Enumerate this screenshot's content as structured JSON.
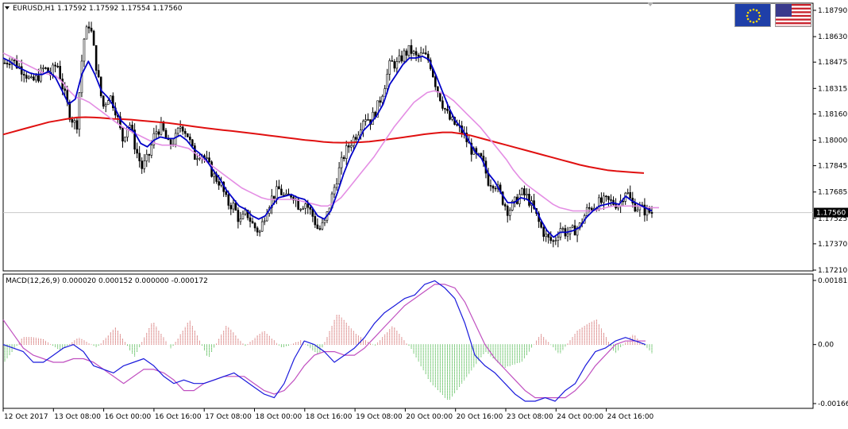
{
  "symbol_header": "EURUSD,H1  1.17592 1.17592 1.17554 1.17560",
  "current_price_label": "1.17560",
  "macd_header": "MACD(12,26,9) 0.000020 0.000152 0.000000 -0.000172",
  "flags": [
    {
      "name": "eu",
      "label": "EUR"
    },
    {
      "name": "us",
      "label": "USD"
    }
  ],
  "colors": {
    "background": "#ffffff",
    "grid": "#c8c8c8",
    "candle": "#000000",
    "ma_fast": "#0000c8",
    "ma_mid": "#e48ee4",
    "ma_slow": "#e01010",
    "macd_line": "#1a1adc",
    "signal_line": "#c050c0",
    "hist_up": "#c03030",
    "hist_down": "#10a010",
    "price_tag_bg": "#000000",
    "price_tag_text": "#ffffff",
    "eu_flag": "#1f3fa8",
    "eu_stars": "#ffd800",
    "us_red": "#c8202a",
    "us_blue": "#3a3a8c"
  },
  "chart_data": [
    {
      "type": "candlestick",
      "title": "EURUSD,H1",
      "y_ticks": [
        "1.18790",
        "1.18630",
        "1.18475",
        "1.18315",
        "1.18160",
        "1.18000",
        "1.17845",
        "1.17685",
        "1.17525",
        "1.17370",
        "1.17210"
      ],
      "x_ticks": [
        "12 Oct 2017",
        "13 Oct 08:00",
        "16 Oct 00:00",
        "16 Oct 16:00",
        "17 Oct 08:00",
        "18 Oct 00:00",
        "18 Oct 16:00",
        "19 Oct 08:00",
        "20 Oct 00:00",
        "20 Oct 16:00",
        "23 Oct 08:00",
        "24 Oct 00:00",
        "24 Oct 16:00"
      ],
      "ylim": [
        1.1721,
        1.1879
      ],
      "current_price": 1.1756,
      "series": {
        "close_path": [
          1.1847,
          1.185,
          1.1845,
          1.1842,
          1.1835,
          1.1838,
          1.1844,
          1.184,
          1.1847,
          1.183,
          1.1815,
          1.1808,
          1.186,
          1.1872,
          1.1845,
          1.182,
          1.1828,
          1.1818,
          1.18,
          1.1812,
          1.1795,
          1.1783,
          1.179,
          1.1805,
          1.1808,
          1.1797,
          1.18,
          1.181,
          1.1803,
          1.179,
          1.1793,
          1.1786,
          1.1778,
          1.1774,
          1.1762,
          1.176,
          1.175,
          1.1756,
          1.1748,
          1.1744,
          1.1758,
          1.1766,
          1.177,
          1.1764,
          1.1768,
          1.176,
          1.1762,
          1.1755,
          1.1745,
          1.175,
          1.1765,
          1.178,
          1.1792,
          1.1799,
          1.1805,
          1.1815,
          1.1812,
          1.182,
          1.1832,
          1.1847,
          1.1846,
          1.1852,
          1.1855,
          1.185,
          1.1852,
          1.1848,
          1.1833,
          1.1822,
          1.1813,
          1.1809,
          1.1805,
          1.1797,
          1.179,
          1.1788,
          1.1775,
          1.1774,
          1.1765,
          1.1757,
          1.1762,
          1.1768,
          1.1765,
          1.1757,
          1.1747,
          1.174,
          1.1738,
          1.1747,
          1.1743,
          1.1745,
          1.1748,
          1.1757,
          1.176,
          1.1762,
          1.1763,
          1.1762,
          1.1761,
          1.177,
          1.1761,
          1.1759,
          1.1757,
          1.1756
        ],
        "ma_fast_path": [
          1.185,
          1.1848,
          1.1845,
          1.1843,
          1.1841,
          1.184,
          1.184,
          1.1842,
          1.1838,
          1.183,
          1.1822,
          1.1825,
          1.184,
          1.1848,
          1.184,
          1.183,
          1.1826,
          1.182,
          1.1812,
          1.1808,
          1.1805,
          1.1798,
          1.1796,
          1.18,
          1.1802,
          1.1801,
          1.1801,
          1.1803,
          1.18,
          1.1795,
          1.1792,
          1.1788,
          1.1782,
          1.1777,
          1.177,
          1.1765,
          1.176,
          1.1758,
          1.1754,
          1.1752,
          1.1754,
          1.176,
          1.1765,
          1.1766,
          1.1767,
          1.1765,
          1.1764,
          1.176,
          1.1754,
          1.1752,
          1.1757,
          1.1768,
          1.178,
          1.179,
          1.1798,
          1.1806,
          1.181,
          1.1815,
          1.1822,
          1.1834,
          1.184,
          1.1846,
          1.185,
          1.185,
          1.1851,
          1.1849,
          1.184,
          1.183,
          1.182,
          1.1812,
          1.1807,
          1.18,
          1.1793,
          1.1789,
          1.178,
          1.1775,
          1.1768,
          1.1762,
          1.1762,
          1.1765,
          1.1764,
          1.176,
          1.1752,
          1.1745,
          1.1741,
          1.1744,
          1.1744,
          1.1745,
          1.1747,
          1.1753,
          1.1757,
          1.176,
          1.1761,
          1.1762,
          1.1761,
          1.1766,
          1.1763,
          1.1761,
          1.1759,
          1.1757
        ],
        "ma_mid_path": [
          1.1853,
          1.1851,
          1.1849,
          1.1847,
          1.1845,
          1.1843,
          1.1841,
          1.184,
          1.1839,
          1.1835,
          1.183,
          1.1826,
          1.1825,
          1.1823,
          1.182,
          1.1817,
          1.1814,
          1.1811,
          1.1808,
          1.1806,
          1.1804,
          1.1802,
          1.18,
          1.1798,
          1.1797,
          1.1797,
          1.1797,
          1.1796,
          1.1795,
          1.1792,
          1.1789,
          1.1786,
          1.1783,
          1.178,
          1.1777,
          1.1774,
          1.1771,
          1.1769,
          1.1767,
          1.1765,
          1.1764,
          1.1764,
          1.1764,
          1.1764,
          1.1764,
          1.1763,
          1.1762,
          1.1761,
          1.176,
          1.176,
          1.1762,
          1.1765,
          1.177,
          1.1775,
          1.178,
          1.1785,
          1.179,
          1.1796,
          1.1802,
          1.1808,
          1.1813,
          1.1818,
          1.1823,
          1.1826,
          1.1829,
          1.183,
          1.1829,
          1.1827,
          1.1824,
          1.182,
          1.1816,
          1.1812,
          1.1808,
          1.1803,
          1.1798,
          1.1793,
          1.1788,
          1.1782,
          1.1777,
          1.1773,
          1.177,
          1.1767,
          1.1764,
          1.1761,
          1.1759,
          1.1758,
          1.1757,
          1.1757,
          1.1757,
          1.1757,
          1.1758,
          1.1759,
          1.176,
          1.176,
          1.176,
          1.176,
          1.176,
          1.1759,
          1.1759,
          1.1759
        ],
        "ma_slow_path": [
          1.18035,
          1.1805,
          1.18065,
          1.1808,
          1.18095,
          1.1811,
          1.1812,
          1.1813,
          1.18138,
          1.1814,
          1.18138,
          1.18135,
          1.1813,
          1.18128,
          1.18125,
          1.1812,
          1.18115,
          1.1811,
          1.18105,
          1.18098,
          1.1809,
          1.18082,
          1.18075,
          1.18068,
          1.18062,
          1.18056,
          1.1805,
          1.18043,
          1.18036,
          1.18029,
          1.18022,
          1.18015,
          1.18008,
          1.18001,
          1.17996,
          1.1799,
          1.17986,
          1.17985,
          1.17986,
          1.17988,
          1.17992,
          1.17998,
          1.18005,
          1.18012,
          1.1802,
          1.18028,
          1.18036,
          1.18042,
          1.18048,
          1.18048,
          1.1804,
          1.1803,
          1.18015,
          1.18,
          1.17985,
          1.1797,
          1.17955,
          1.1794,
          1.17925,
          1.1791,
          1.17895,
          1.1788,
          1.17865,
          1.1785,
          1.17838,
          1.17828,
          1.17818,
          1.17812,
          1.17808,
          1.17804,
          1.178
        ]
      }
    },
    {
      "type": "line+bar",
      "title": "MACD(12,26,9)",
      "y_ticks": [
        "0.00181",
        "0.00",
        "-0.001667"
      ],
      "ylim": [
        -0.001667,
        0.00181
      ],
      "macd_path": [
        0.0,
        -0.0001,
        -0.0002,
        -0.0005,
        -0.0005,
        -0.0003,
        -0.0001,
        0.0,
        -0.0002,
        -0.0006,
        -0.0007,
        -0.0008,
        -0.0006,
        -0.0005,
        -0.0004,
        -0.0006,
        -0.0009,
        -0.0011,
        -0.001,
        -0.0011,
        -0.0011,
        -0.001,
        -0.0009,
        -0.0008,
        -0.001,
        -0.0012,
        -0.0014,
        -0.0015,
        -0.0011,
        -0.0004,
        0.0001,
        0.0,
        -0.0002,
        -0.0005,
        -0.0003,
        -0.0001,
        0.0002,
        0.0006,
        0.0009,
        0.0011,
        0.0013,
        0.0014,
        0.0017,
        0.0018,
        0.0016,
        0.0013,
        0.0006,
        -0.0003,
        -0.0006,
        -0.0008,
        -0.0011,
        -0.0014,
        -0.0016,
        -0.0016,
        -0.0015,
        -0.0016,
        -0.0013,
        -0.0011,
        -0.0006,
        -0.0002,
        -0.0001,
        0.0001,
        0.0002,
        0.0001,
        0.0
      ],
      "signal_path": [
        0.0007,
        0.0003,
        -0.0001,
        -0.0003,
        -0.0004,
        -0.0005,
        -0.0005,
        -0.0004,
        -0.0004,
        -0.0005,
        -0.0007,
        -0.0009,
        -0.0011,
        -0.0009,
        -0.0007,
        -0.0007,
        -0.0008,
        -0.001,
        -0.0013,
        -0.0013,
        -0.0011,
        -0.001,
        -0.0009,
        -0.0009,
        -0.0009,
        -0.0011,
        -0.0013,
        -0.0014,
        -0.0013,
        -0.001,
        -0.0006,
        -0.0003,
        -0.0002,
        -0.0002,
        -0.0003,
        -0.0003,
        -0.0001,
        0.0002,
        0.0005,
        0.0008,
        0.0011,
        0.0013,
        0.0015,
        0.0017,
        0.0017,
        0.0016,
        0.0012,
        0.0006,
        0.0,
        -0.0004,
        -0.0007,
        -0.001,
        -0.0013,
        -0.0015,
        -0.0015,
        -0.0015,
        -0.0015,
        -0.0013,
        -0.001,
        -0.0006,
        -0.0003,
        0.0,
        0.0001,
        0.0001,
        0.0001
      ],
      "histogram_profile": [
        -0.00048,
        0.00022,
        0.00018,
        -0.00018,
        0.0002,
        -8e-05,
        0.0005,
        -0.00036,
        0.00066,
        -0.00012,
        0.0007,
        -0.0004,
        0.00056,
        -5e-05,
        0.0004,
        -0.0001,
        0.00012,
        -0.0003,
        0.0009,
        0.0003,
        -4e-05,
        0.00054,
        -0.00014,
        -0.00106,
        -0.0016,
        -0.0009,
        -0.0002,
        -0.00066,
        -0.00048,
        0.0003,
        -0.00028,
        0.00042,
        0.00072,
        -0.00026,
        0.0003,
        -0.00024
      ]
    }
  ],
  "axis_geometry_note": ""
}
